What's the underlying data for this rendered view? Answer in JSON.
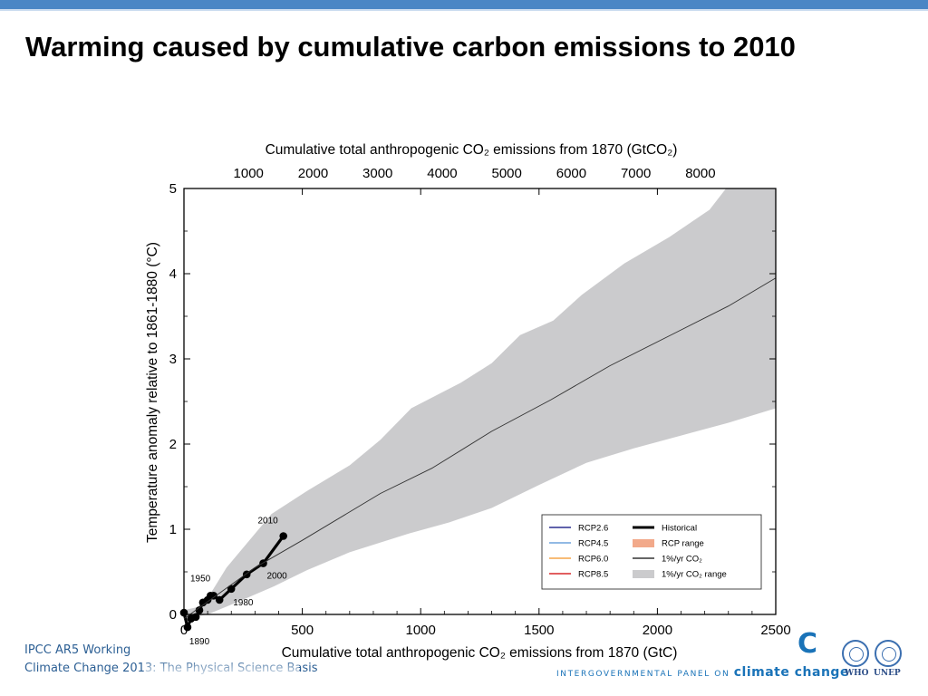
{
  "slide": {
    "title": "Warming caused by cumulative carbon emissions to 2010",
    "footer_line1": "IPCC AR5 Working",
    "footer_line2": "Climate Change 2013:  The Physical Science Basis",
    "ipcc_logo_letter": "C",
    "ipcc_name_prefix": "INTERGOVERNMENTAL PANEL ON ",
    "ipcc_name_brand": "climate change",
    "who_label": "WHO",
    "unep_label": "UNEP",
    "colors": {
      "top_bar": "#4a86c5",
      "footer_text": "#2c5f94",
      "ipcc_blue": "#1a73b8"
    }
  },
  "chart_data": {
    "type": "line",
    "xlabel": "Cumulative total anthropogenic CO₂ emissions from 1870 (GtC)",
    "top_xlabel": "Cumulative total anthropogenic CO₂ emissions from 1870 (GtCO₂)",
    "ylabel": "Temperature anomaly relative to 1861-1880 (°C)",
    "xlim": [
      0,
      2500
    ],
    "ylim": [
      0,
      5
    ],
    "x_ticks": [
      "0",
      "500",
      "1000",
      "1500",
      "2000",
      "2500"
    ],
    "x_tick_values": [
      0,
      500,
      1000,
      1500,
      2000,
      2500
    ],
    "y_ticks": [
      "0",
      "1",
      "2",
      "3",
      "4",
      "5"
    ],
    "y_tick_values": [
      0,
      1,
      2,
      3,
      4,
      5
    ],
    "top_ticks": [
      "1000",
      "2000",
      "3000",
      "4000",
      "5000",
      "6000",
      "7000",
      "8000"
    ],
    "top_tick_values_gtc": [
      272.7,
      545.5,
      818.2,
      1090.9,
      1363.6,
      1636.4,
      1909.1,
      2181.8
    ],
    "grid": false,
    "legend_position": "bottom-right",
    "legend": [
      {
        "label": "RCP2.6",
        "color": "#2b2f8f",
        "kind": "line"
      },
      {
        "label": "RCP4.5",
        "color": "#6fa3dc",
        "kind": "line"
      },
      {
        "label": "RCP6.0",
        "color": "#f5a54a",
        "kind": "line"
      },
      {
        "label": "RCP8.5",
        "color": "#d7282c",
        "kind": "line"
      },
      {
        "label": "Historical",
        "color": "#000000",
        "kind": "thick"
      },
      {
        "label": "RCP range",
        "color": "#f2a98a",
        "kind": "patch"
      },
      {
        "label": "1%/yr CO₂",
        "color": "#333333",
        "kind": "line"
      },
      {
        "label": "1%/yr CO₂ range",
        "color": "#cbcbcd",
        "kind": "patch"
      }
    ],
    "series": [
      {
        "name": "Historical",
        "color": "#000000",
        "points": [
          [
            0,
            0.02
          ],
          [
            15,
            -0.15
          ],
          [
            30,
            -0.05
          ],
          [
            50,
            -0.03
          ],
          [
            65,
            0.05
          ],
          [
            80,
            0.14
          ],
          [
            100,
            0.17
          ],
          [
            112,
            0.22
          ],
          [
            125,
            0.22
          ],
          [
            150,
            0.17
          ],
          [
            200,
            0.3
          ],
          [
            265,
            0.47
          ],
          [
            335,
            0.6
          ],
          [
            420,
            0.92
          ]
        ]
      },
      {
        "name": "1%/yr CO₂",
        "color": "#333333",
        "points": [
          [
            0,
            -0.05
          ],
          [
            150,
            0.25
          ],
          [
            300,
            0.55
          ],
          [
            500,
            0.87
          ],
          [
            830,
            1.42
          ],
          [
            1050,
            1.72
          ],
          [
            1300,
            2.15
          ],
          [
            1550,
            2.52
          ],
          [
            1800,
            2.92
          ],
          [
            2050,
            3.27
          ],
          [
            2300,
            3.62
          ],
          [
            2500,
            3.95
          ]
        ]
      }
    ],
    "range": {
      "name": "1%/yr CO₂ range",
      "color": "#cbcbcd",
      "upper": [
        [
          0,
          0.05
        ],
        [
          80,
          0.1
        ],
        [
          180,
          0.55
        ],
        [
          370,
          1.18
        ],
        [
          520,
          1.45
        ],
        [
          700,
          1.75
        ],
        [
          830,
          2.05
        ],
        [
          960,
          2.42
        ],
        [
          1170,
          2.72
        ],
        [
          1300,
          2.95
        ],
        [
          1420,
          3.28
        ],
        [
          1560,
          3.45
        ],
        [
          1680,
          3.75
        ],
        [
          1860,
          4.12
        ],
        [
          2050,
          4.43
        ],
        [
          2220,
          4.75
        ],
        [
          2290,
          5.0
        ],
        [
          2500,
          5.0
        ]
      ],
      "lower": [
        [
          2500,
          2.42
        ],
        [
          2300,
          2.25
        ],
        [
          2100,
          2.1
        ],
        [
          1900,
          1.95
        ],
        [
          1700,
          1.78
        ],
        [
          1500,
          1.52
        ],
        [
          1300,
          1.25
        ],
        [
          1120,
          1.08
        ],
        [
          950,
          0.95
        ],
        [
          700,
          0.73
        ],
        [
          520,
          0.52
        ],
        [
          380,
          0.33
        ],
        [
          230,
          0.15
        ],
        [
          100,
          0.0
        ],
        [
          0,
          -0.05
        ]
      ]
    },
    "annotations": [
      {
        "text": "2010",
        "x": 420,
        "y": 0.92,
        "anchor": "end",
        "dx": -6,
        "dy": -14
      },
      {
        "text": "2000",
        "x": 335,
        "y": 0.6,
        "anchor": "start",
        "dx": 4,
        "dy": 17
      },
      {
        "text": "1980",
        "x": 200,
        "y": 0.3,
        "anchor": "start",
        "dx": 2,
        "dy": 18
      },
      {
        "text": "1950",
        "x": 112,
        "y": 0.22,
        "anchor": "end",
        "dx": 0,
        "dy": -16
      },
      {
        "text": "1890",
        "x": 15,
        "y": -0.15,
        "anchor": "start",
        "dx": 2,
        "dy": 19
      }
    ]
  }
}
